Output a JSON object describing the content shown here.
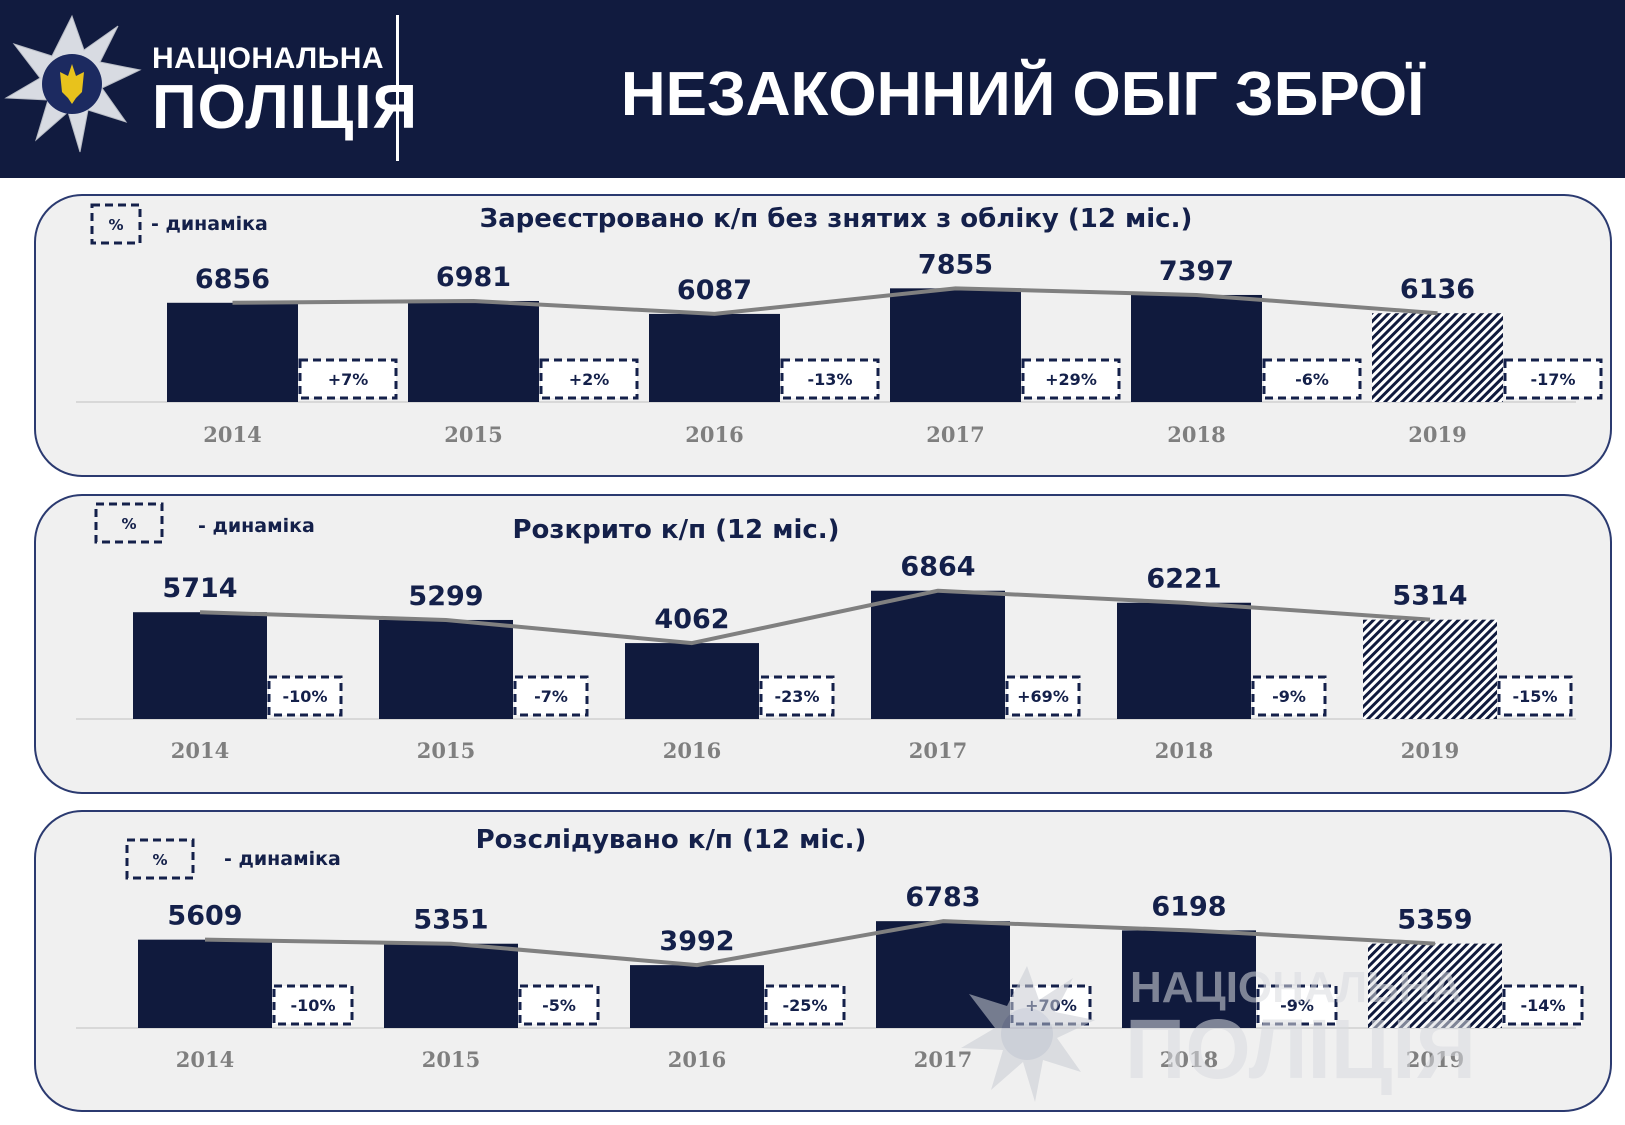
{
  "header": {
    "brand_line1": "НАЦІОНАЛЬНА",
    "brand_line2": "ПОЛІЦІЯ",
    "title": "НЕЗАКОННИЙ ОБІГ ЗБРОЇ"
  },
  "legend": {
    "symbol": "%",
    "text": "- динаміка"
  },
  "colors": {
    "header_bg": "#111b3f",
    "bar": "#101a3d",
    "line": "#808080",
    "panel_bg": "#f0f0f0",
    "panel_border": "#2b3a70"
  },
  "watermark": {
    "line1": "НАЦІОНАЛЬНА",
    "line2": "ПОЛІЦІЯ"
  },
  "chart_data": [
    {
      "type": "bar",
      "title": "Зареєстровано к/п без знятих з обліку (12 міс.)",
      "categories": [
        "2014",
        "2015",
        "2016",
        "2017",
        "2018",
        "2019"
      ],
      "values": [
        6856,
        6981,
        6087,
        7855,
        7397,
        6136
      ],
      "dynamics": [
        "+7%",
        "+2%",
        "-13%",
        "+29%",
        "-6%",
        "-17%"
      ],
      "highlight_last_hatched": true,
      "trend_line": true
    },
    {
      "type": "bar",
      "title": "Розкрито к/п (12 міс.)",
      "categories": [
        "2014",
        "2015",
        "2016",
        "2017",
        "2018",
        "2019"
      ],
      "values": [
        5714,
        5299,
        4062,
        6864,
        6221,
        5314
      ],
      "dynamics": [
        "-10%",
        "-7%",
        "-23%",
        "+69%",
        "-9%",
        "-15%"
      ],
      "highlight_last_hatched": true,
      "trend_line": true
    },
    {
      "type": "bar",
      "title": "Розслідувано к/п (12 міс.)",
      "categories": [
        "2014",
        "2015",
        "2016",
        "2017",
        "2018",
        "2019"
      ],
      "values": [
        5609,
        5351,
        3992,
        6783,
        6198,
        5359
      ],
      "dynamics": [
        "-10%",
        "-5%",
        "-25%",
        "+70%",
        "-9%",
        "-14%"
      ],
      "highlight_last_hatched": true,
      "trend_line": true
    }
  ]
}
